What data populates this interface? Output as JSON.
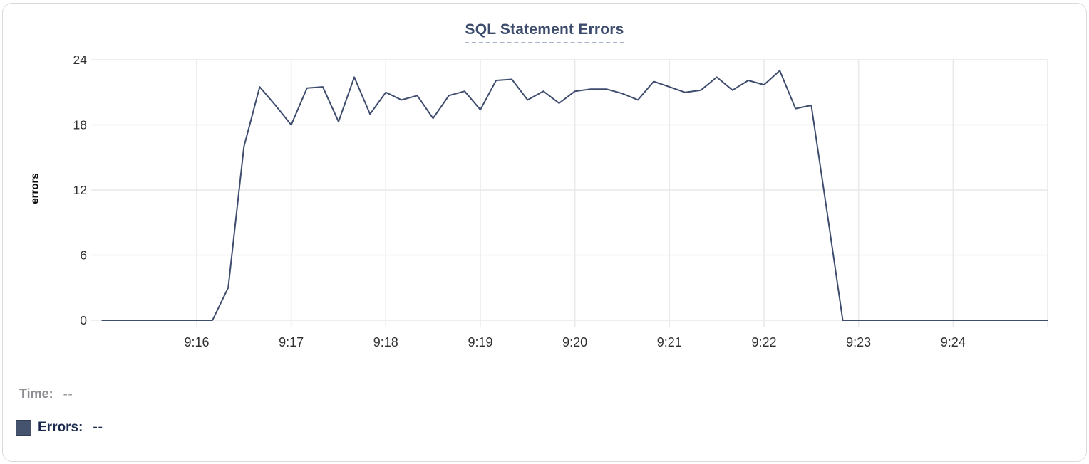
{
  "chart_data": {
    "type": "line",
    "title": "SQL Statement Errors",
    "xlabel": "",
    "ylabel": "errors",
    "x_tick_labels": [
      "9:16",
      "9:17",
      "9:18",
      "9:19",
      "9:20",
      "9:21",
      "9:22",
      "9:23",
      "9:24"
    ],
    "y_tick_labels": [
      "0",
      "6",
      "12",
      "18",
      "24"
    ],
    "y_ticks": [
      0,
      6,
      12,
      18,
      24
    ],
    "ylim": [
      0,
      24
    ],
    "x_range": [
      "9:15:00",
      "9:25:00"
    ],
    "sample_interval_seconds": 10,
    "grid": true,
    "legend_position": "bottom-left",
    "series": [
      {
        "name": "Errors",
        "color": "#3e4c6e",
        "points": [
          [
            "9:15:00",
            0
          ],
          [
            "9:15:10",
            0
          ],
          [
            "9:15:20",
            0
          ],
          [
            "9:15:30",
            0
          ],
          [
            "9:15:40",
            0
          ],
          [
            "9:15:50",
            0
          ],
          [
            "9:16:00",
            0
          ],
          [
            "9:16:10",
            0
          ],
          [
            "9:16:20",
            3
          ],
          [
            "9:16:30",
            16
          ],
          [
            "9:16:40",
            21.5
          ],
          [
            "9:16:50",
            19.8
          ],
          [
            "9:17:00",
            18
          ],
          [
            "9:17:10",
            21.4
          ],
          [
            "9:17:20",
            21.5
          ],
          [
            "9:17:30",
            18.3
          ],
          [
            "9:17:40",
            22.4
          ],
          [
            "9:17:50",
            19
          ],
          [
            "9:18:00",
            21
          ],
          [
            "9:18:10",
            20.3
          ],
          [
            "9:18:20",
            20.7
          ],
          [
            "9:18:30",
            18.6
          ],
          [
            "9:18:40",
            20.7
          ],
          [
            "9:18:50",
            21.1
          ],
          [
            "9:19:00",
            19.4
          ],
          [
            "9:19:10",
            22.1
          ],
          [
            "9:19:20",
            22.2
          ],
          [
            "9:19:30",
            20.3
          ],
          [
            "9:19:40",
            21.1
          ],
          [
            "9:19:50",
            20
          ],
          [
            "9:20:00",
            21.1
          ],
          [
            "9:20:10",
            21.3
          ],
          [
            "9:20:20",
            21.3
          ],
          [
            "9:20:30",
            20.9
          ],
          [
            "9:20:40",
            20.3
          ],
          [
            "9:20:50",
            22
          ],
          [
            "9:21:00",
            21.5
          ],
          [
            "9:21:10",
            21
          ],
          [
            "9:21:20",
            21.2
          ],
          [
            "9:21:30",
            22.4
          ],
          [
            "9:21:40",
            21.2
          ],
          [
            "9:21:50",
            22.1
          ],
          [
            "9:22:00",
            21.7
          ],
          [
            "9:22:10",
            23
          ],
          [
            "9:22:20",
            19.5
          ],
          [
            "9:22:30",
            19.8
          ],
          [
            "9:22:40",
            10
          ],
          [
            "9:22:50",
            0
          ],
          [
            "9:23:00",
            0
          ],
          [
            "9:23:10",
            0
          ],
          [
            "9:23:20",
            0
          ],
          [
            "9:23:30",
            0
          ],
          [
            "9:23:40",
            0
          ],
          [
            "9:23:50",
            0
          ],
          [
            "9:24:00",
            0
          ],
          [
            "9:24:10",
            0
          ],
          [
            "9:24:20",
            0
          ],
          [
            "9:24:30",
            0
          ],
          [
            "9:24:40",
            0
          ],
          [
            "9:24:50",
            0
          ],
          [
            "9:25:00",
            0
          ]
        ]
      }
    ]
  },
  "tooltip": {
    "time_label": "Time:",
    "time_value": "--",
    "errors_label": "Errors:",
    "errors_value": "--"
  },
  "colors": {
    "line": "#3e4c6e",
    "legend_swatch": "#46536e",
    "title": "#3d4c6d",
    "title_underline": "#a9b4cd",
    "gridline": "#e9e9e9",
    "tick_text": "#2f2f2f",
    "time_text": "#8d8d93",
    "errors_text": "#1c2a50",
    "card_border": "#d9d9de"
  }
}
